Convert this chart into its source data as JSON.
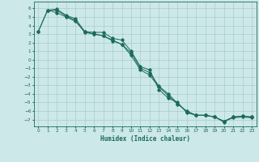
{
  "xlabel": "Humidex (Indice chaleur)",
  "xlim": [
    -0.5,
    23.5
  ],
  "ylim": [
    -7.8,
    6.8
  ],
  "xticks": [
    0,
    1,
    2,
    3,
    4,
    5,
    6,
    7,
    8,
    9,
    10,
    11,
    12,
    13,
    14,
    15,
    16,
    17,
    18,
    19,
    20,
    21,
    22,
    23
  ],
  "yticks": [
    6,
    5,
    4,
    3,
    2,
    1,
    0,
    -1,
    -2,
    -3,
    -4,
    -5,
    -6,
    -7
  ],
  "bg_color": "#cce8e8",
  "grid_color": "#aacccc",
  "line_color": "#1a6b5a",
  "line1_x": [
    0,
    1,
    2,
    3,
    4,
    5,
    6,
    7,
    8,
    9,
    10,
    11,
    12,
    13,
    14,
    15,
    16,
    17,
    18,
    19,
    20,
    21,
    22,
    23
  ],
  "line1_y": [
    3.3,
    5.8,
    5.9,
    5.2,
    4.8,
    3.3,
    3.2,
    3.2,
    2.5,
    2.3,
    1.0,
    -0.8,
    -1.2,
    -3.5,
    -4.5,
    -5.0,
    -6.2,
    -6.5,
    -6.5,
    -6.7,
    -7.2,
    -6.8,
    -6.7,
    -6.8
  ],
  "line2_x": [
    0,
    1,
    2,
    3,
    4,
    5,
    6,
    7,
    8,
    9,
    10,
    11,
    12,
    13,
    14,
    15,
    16,
    17,
    18,
    19,
    20,
    21,
    22,
    23
  ],
  "line2_y": [
    3.3,
    5.8,
    5.5,
    5.0,
    4.5,
    3.3,
    3.0,
    2.8,
    2.3,
    1.8,
    0.5,
    -1.2,
    -1.8,
    -3.2,
    -4.2,
    -5.2,
    -6.0,
    -6.5,
    -6.5,
    -6.7,
    -7.3,
    -6.7,
    -6.6,
    -6.7
  ],
  "line3_x": [
    1,
    2,
    3,
    4,
    5,
    6,
    7,
    8,
    9,
    10,
    11,
    12,
    13,
    14,
    15,
    16,
    17,
    18,
    19,
    20,
    21,
    22,
    23
  ],
  "line3_y": [
    5.8,
    5.8,
    5.1,
    4.6,
    3.2,
    3.0,
    2.8,
    2.2,
    1.8,
    0.8,
    -1.0,
    -1.5,
    -3.1,
    -4.0,
    -5.1,
    -6.1,
    -6.5,
    -6.5,
    -6.7,
    -7.2,
    -6.7,
    -6.6,
    -6.7
  ]
}
